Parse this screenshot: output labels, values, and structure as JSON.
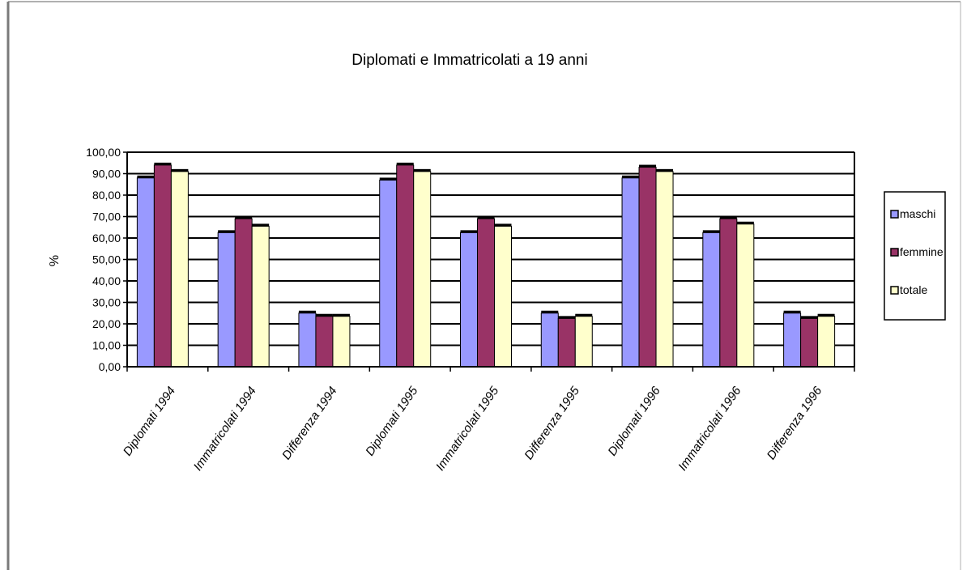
{
  "chart_data": {
    "type": "bar",
    "title": "Diplomati e Immatricolati a 19 anni",
    "xlabel": "",
    "ylabel": "%",
    "ylim": [
      0,
      100
    ],
    "yticks": [
      "0,00",
      "10,00",
      "20,00",
      "30,00",
      "40,00",
      "50,00",
      "60,00",
      "70,00",
      "80,00",
      "90,00",
      "100,00"
    ],
    "grid": true,
    "legend_position": "right",
    "categories": [
      "Diplomati 1994",
      "Immatricolati 1994",
      "Differenza 1994",
      "Diplomati 1995",
      "Immatricolati 1995",
      "Differenza 1995",
      "Diplomati 1996",
      "Immatricolati 1996",
      "Differenza 1996"
    ],
    "series": [
      {
        "name": "maschi",
        "color": "#9999ff",
        "values": [
          88,
          62.5,
          25,
          87,
          62.5,
          25,
          88,
          62.5,
          25
        ]
      },
      {
        "name": "femmine",
        "color": "#993366",
        "values": [
          94,
          69,
          23.5,
          94,
          69,
          22.5,
          93,
          69,
          22.5
        ]
      },
      {
        "name": "totale",
        "color": "#ffffcc",
        "values": [
          91,
          65.5,
          23.5,
          91,
          65.5,
          23.5,
          91,
          66.5,
          23.5
        ]
      }
    ]
  }
}
